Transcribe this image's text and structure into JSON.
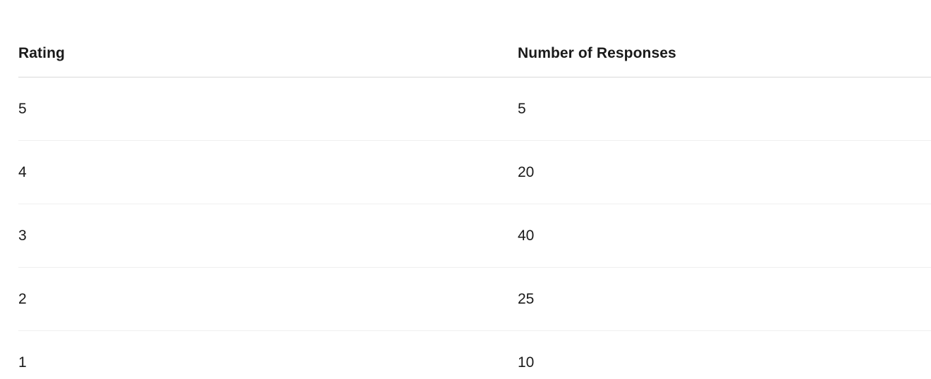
{
  "table": {
    "columns": [
      {
        "label": "Rating"
      },
      {
        "label": "Number of Responses"
      }
    ],
    "rows": [
      {
        "rating": "5",
        "responses": "5"
      },
      {
        "rating": "4",
        "responses": "20"
      },
      {
        "rating": "3",
        "responses": "40"
      },
      {
        "rating": "2",
        "responses": "25"
      },
      {
        "rating": "1",
        "responses": "10"
      }
    ]
  },
  "colors": {
    "header_divider": "#d9d9d9",
    "row_divider": "#efefef",
    "text": "#1a1a1a",
    "background": "#ffffff"
  },
  "chart_data": {
    "type": "table",
    "title": "",
    "categories": [
      5,
      4,
      3,
      2,
      1
    ],
    "series": [
      {
        "name": "Number of Responses",
        "values": [
          5,
          20,
          40,
          25,
          10
        ]
      }
    ],
    "xlabel": "Rating",
    "ylabel": "Number of Responses",
    "legend_position": "none",
    "grid": false
  }
}
